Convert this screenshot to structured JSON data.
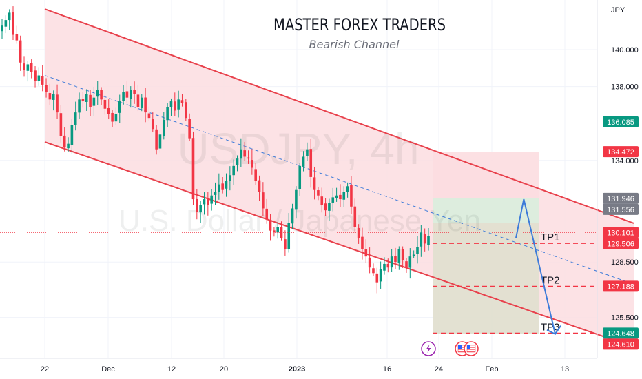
{
  "header": {
    "title": "MASTER FOREX TRADERS",
    "subtitle": "Bearish Channel"
  },
  "watermark": {
    "symbol": "USDJPY, 4h",
    "description": "U.S. Dollar / Japanese Yen"
  },
  "axis": {
    "currency": "JPY",
    "y_ticks": [
      "140.000",
      "138.000",
      "134.000",
      "128.500",
      "125.500"
    ],
    "x_ticks": [
      "22",
      "Dec",
      "12",
      "20",
      "2023",
      "16",
      "24",
      "Feb",
      "13"
    ]
  },
  "chart_data": {
    "type": "candlestick",
    "symbol": "USDJPY",
    "timeframe": "4h",
    "ylim": [
      123.8,
      142.3
    ],
    "grid": true,
    "channel": {
      "upper": [
        {
          "x": "2022-11-22",
          "y": 142.2
        },
        {
          "x": "2023-02-05",
          "y": 130.6
        }
      ],
      "lower": [
        {
          "x": "2022-11-22",
          "y": 135.0
        },
        {
          "x": "2023-02-05",
          "y": 123.9
        }
      ],
      "mid": [
        {
          "x": "2022-11-22",
          "y": 138.6
        },
        {
          "x": "2023-02-05",
          "y": 127.3
        }
      ]
    },
    "projection": [
      {
        "x": "2023-01-21",
        "y": 129.8
      },
      {
        "x": "2023-01-22",
        "y": 131.9
      },
      {
        "x": "2023-01-26",
        "y": 124.6
      }
    ],
    "close_series": [
      141.3,
      141.6,
      142.0,
      140.8,
      140.5,
      139.3,
      138.9,
      139.2,
      138.8,
      138.3,
      138.6,
      138.1,
      137.7,
      137.3,
      137.6,
      136.6,
      135.3,
      134.7,
      134.9,
      135.9,
      136.6,
      137.3,
      137.2,
      137.6,
      136.9,
      137.4,
      137.8,
      137.3,
      136.8,
      136.5,
      136.1,
      136.5,
      137.2,
      137.7,
      137.4,
      137.8,
      137.6,
      136.9,
      137.4,
      136.6,
      136.3,
      135.7,
      134.6,
      135.4,
      136.2,
      136.9,
      137.2,
      136.7,
      137.3,
      137.1,
      136.3,
      135.2,
      131.9,
      131.2,
      131.6,
      131.9,
      131.6,
      132.1,
      132.3,
      132.7,
      132.4,
      132.9,
      133.2,
      133.7,
      134.1,
      134.6,
      134.2,
      134.1,
      133.6,
      132.9,
      132.3,
      131.4,
      130.8,
      130.2,
      130.1,
      130.4,
      129.8,
      129.2,
      130.6,
      131.4,
      132.4,
      133.7,
      134.2,
      134.6,
      133.1,
      132.4,
      132.1,
      131.6,
      131.3,
      131.7,
      132.0,
      132.1,
      131.9,
      132.3,
      132.6,
      131.5,
      130.4,
      129.8,
      129.2,
      128.8,
      128.2,
      127.9,
      127.4,
      128.1,
      128.4,
      128.2,
      128.8,
      128.5,
      129.2,
      128.6,
      128.2,
      128.8,
      128.9,
      129.3,
      130.1,
      129.5,
      129.9
    ],
    "levels": [
      {
        "name": "TP1",
        "value": 129.506,
        "color": "#f23645"
      },
      {
        "name": "TP2",
        "value": 127.188,
        "color": "#f23645"
      },
      {
        "name": "TP3",
        "value": 124.648,
        "color": "#089981"
      }
    ],
    "price_labels": [
      {
        "text": "136.085",
        "value": 136.085,
        "color": "#089981"
      },
      {
        "text": "134.472",
        "value": 134.472,
        "color": "#f23645"
      },
      {
        "text": "131.946",
        "value": 131.946,
        "color": "#787b86"
      },
      {
        "text": "131.556",
        "value": 131.556,
        "color": "#787b86"
      },
      {
        "text": "130.101",
        "value": 130.101,
        "color": "#f23645"
      },
      {
        "text": "129.506",
        "value": 129.506,
        "color": "#f23645"
      },
      {
        "text": "127.188",
        "value": 127.188,
        "color": "#f23645"
      },
      {
        "text": "124.648",
        "value": 124.648,
        "color": "#089981"
      },
      {
        "text": "124.610",
        "value": 124.61,
        "color": "#f23645"
      }
    ],
    "position": {
      "stop": 134.472,
      "entry": 131.946,
      "target": 124.61
    },
    "colors": {
      "up": "#089981",
      "down": "#f23645",
      "channel_fill": "#fcdde0",
      "channel_line": "#e8414c",
      "mid_line": "#3d7bd9",
      "projection": "#3d7bd9",
      "stop_zone": "#fcdde0",
      "target_zone": "#d9eedd",
      "overlap_zone": "#e8d6c6"
    },
    "event_icons": [
      "lightning-icon",
      "us-flag-icon",
      "us-flag-icon"
    ]
  }
}
